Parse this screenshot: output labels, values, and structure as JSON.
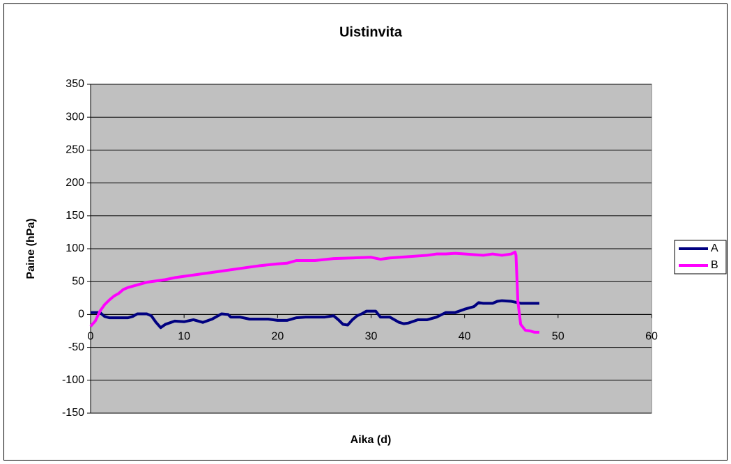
{
  "chart_data": {
    "type": "line",
    "title": "Uistinvita",
    "x_label": "Aika (d)",
    "y_label": "Paine (hPa)",
    "xlim": [
      0,
      60
    ],
    "xticks": [
      0,
      10,
      20,
      30,
      40,
      50,
      60
    ],
    "ylim": [
      -150,
      350
    ],
    "yticks": [
      -150,
      -100,
      -50,
      0,
      50,
      100,
      150,
      200,
      250,
      300,
      350
    ],
    "grid": true,
    "legend": "right",
    "series": [
      {
        "name": "A",
        "color": "#000080",
        "x": [
          0,
          1,
          1.5,
          2,
          3,
          4,
          4.5,
          5,
          6,
          6.5,
          7,
          7.5,
          8,
          9,
          10,
          11,
          12,
          13,
          13.5,
          14,
          14.7,
          15,
          16,
          17,
          18,
          19,
          20,
          21,
          22,
          23,
          24,
          25,
          26,
          26.5,
          27,
          27.5,
          28,
          28.5,
          29,
          29.5,
          30,
          30.5,
          31,
          32,
          33,
          33.5,
          34,
          35,
          36,
          37,
          38,
          39,
          40,
          41,
          41.5,
          42,
          43,
          43.5,
          44,
          45,
          46,
          47,
          48
        ],
        "values": [
          3,
          3,
          -3,
          -5,
          -5,
          -5,
          -3,
          1,
          1,
          -2,
          -12,
          -20,
          -15,
          -10,
          -11,
          -8,
          -12,
          -7,
          -3,
          1,
          0,
          -4,
          -4,
          -7,
          -7,
          -7,
          -9,
          -9,
          -5,
          -4,
          -4,
          -4,
          -2,
          -8,
          -15,
          -16,
          -8,
          -2,
          1,
          5,
          5,
          5,
          -4,
          -4,
          -12,
          -14,
          -13,
          -8,
          -8,
          -4,
          3,
          3,
          8,
          12,
          18,
          17,
          17,
          20,
          21,
          20,
          17,
          17,
          17
        ]
      },
      {
        "name": "B",
        "color": "#ff00ff",
        "x": [
          0,
          0.5,
          1,
          1.5,
          2,
          2.5,
          3,
          3.5,
          4,
          5,
          6,
          7,
          8,
          9,
          10,
          12,
          14,
          16,
          18,
          20,
          21,
          22,
          24,
          26,
          28,
          30,
          31,
          32,
          34,
          36,
          37,
          38,
          39,
          40,
          42,
          43,
          44,
          45,
          45.4,
          45.5,
          45.7,
          46,
          46.5,
          47,
          47.5,
          48
        ],
        "values": [
          -18,
          -10,
          5,
          15,
          22,
          28,
          32,
          38,
          41,
          45,
          49,
          51,
          53,
          56,
          58,
          62,
          66,
          70,
          74,
          77,
          78,
          82,
          82,
          85,
          86,
          87,
          84,
          86,
          88,
          90,
          92,
          92,
          93,
          92,
          90,
          92,
          90,
          92,
          95,
          90,
          20,
          -15,
          -24,
          -25,
          -27,
          -27
        ]
      }
    ]
  }
}
